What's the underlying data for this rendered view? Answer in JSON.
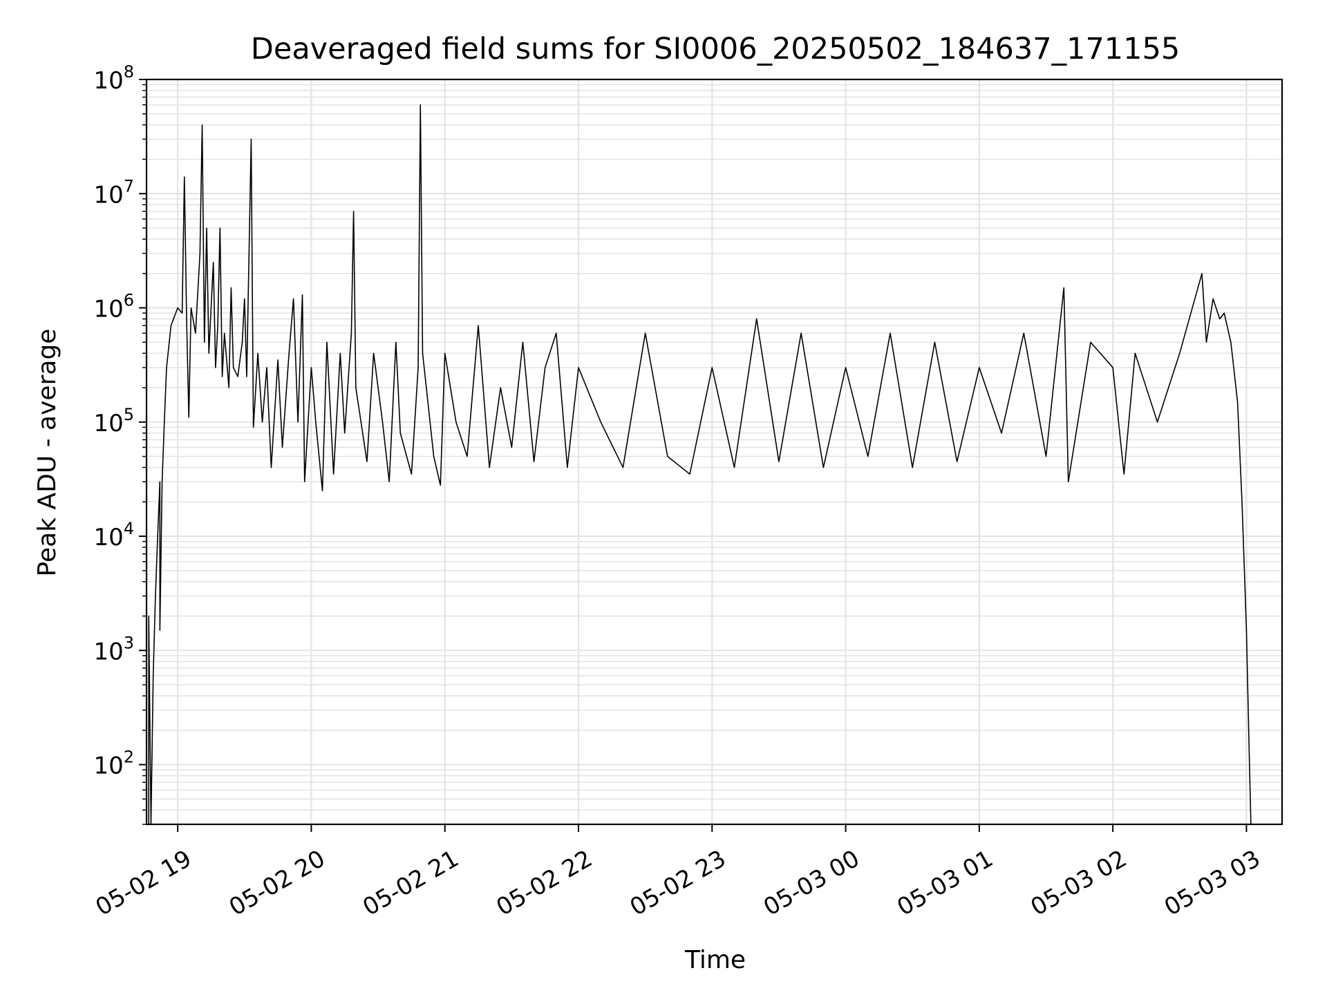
{
  "chart_data": {
    "type": "line",
    "title": "Deaveraged field sums for SI0006_20250502_184637_171155",
    "xlabel": "Time",
    "ylabel": "Peak ADU - average",
    "x_axis_type": "datetime",
    "y_scale": "log",
    "xlim": [
      "2025-05-02 18:46",
      "2025-05-03 03:16"
    ],
    "ylim": [
      30,
      100000000
    ],
    "grid": true,
    "grid_minor": true,
    "line_color": "#000000",
    "x_ticks": [
      {
        "value": "2025-05-02 19:00",
        "label": "05-02 19"
      },
      {
        "value": "2025-05-02 20:00",
        "label": "05-02 20"
      },
      {
        "value": "2025-05-02 21:00",
        "label": "05-02 21"
      },
      {
        "value": "2025-05-02 22:00",
        "label": "05-02 22"
      },
      {
        "value": "2025-05-02 23:00",
        "label": "05-02 23"
      },
      {
        "value": "2025-05-03 00:00",
        "label": "05-03 00"
      },
      {
        "value": "2025-05-03 01:00",
        "label": "05-03 01"
      },
      {
        "value": "2025-05-03 02:00",
        "label": "05-03 02"
      },
      {
        "value": "2025-05-03 03:00",
        "label": "05-03 03"
      }
    ],
    "y_ticks": [
      {
        "value": 100,
        "base": "10",
        "exp": "2"
      },
      {
        "value": 1000,
        "base": "10",
        "exp": "3"
      },
      {
        "value": 10000,
        "base": "10",
        "exp": "4"
      },
      {
        "value": 100000,
        "base": "10",
        "exp": "5"
      },
      {
        "value": 1000000,
        "base": "10",
        "exp": "6"
      },
      {
        "value": 10000000,
        "base": "10",
        "exp": "7"
      },
      {
        "value": 100000000,
        "base": "10",
        "exp": "8"
      }
    ],
    "series": [
      {
        "points": [
          [
            "2025-05-02 18:47",
            30
          ],
          [
            "2025-05-02 18:47",
            2000
          ],
          [
            "2025-05-02 18:48",
            30
          ],
          [
            "2025-05-02 18:49",
            600
          ],
          [
            "2025-05-02 18:50",
            3000
          ],
          [
            "2025-05-02 18:51",
            10000
          ],
          [
            "2025-05-02 18:52",
            30000
          ],
          [
            "2025-05-02 18:52",
            1500
          ],
          [
            "2025-05-02 18:53",
            30000
          ],
          [
            "2025-05-02 18:54",
            100000
          ],
          [
            "2025-05-02 18:55",
            300000
          ],
          [
            "2025-05-02 18:57",
            700000
          ],
          [
            "2025-05-02 19:00",
            1000000
          ],
          [
            "2025-05-02 19:02",
            900000
          ],
          [
            "2025-05-02 19:03",
            14000000
          ],
          [
            "2025-05-02 19:04",
            800000
          ],
          [
            "2025-05-02 19:05",
            110000
          ],
          [
            "2025-05-02 19:06",
            1000000
          ],
          [
            "2025-05-02 19:08",
            600000
          ],
          [
            "2025-05-02 19:10",
            3000000
          ],
          [
            "2025-05-02 19:11",
            40000000
          ],
          [
            "2025-05-02 19:12",
            500000
          ],
          [
            "2025-05-02 19:13",
            5000000
          ],
          [
            "2025-05-02 19:14",
            400000
          ],
          [
            "2025-05-02 19:16",
            2500000
          ],
          [
            "2025-05-02 19:17",
            300000
          ],
          [
            "2025-05-02 19:18",
            700000
          ],
          [
            "2025-05-02 19:19",
            5000000
          ],
          [
            "2025-05-02 19:20",
            250000
          ],
          [
            "2025-05-02 19:21",
            600000
          ],
          [
            "2025-05-02 19:23",
            200000
          ],
          [
            "2025-05-02 19:24",
            1500000
          ],
          [
            "2025-05-02 19:25",
            300000
          ],
          [
            "2025-05-02 19:27",
            250000
          ],
          [
            "2025-05-02 19:29",
            500000
          ],
          [
            "2025-05-02 19:30",
            1200000
          ],
          [
            "2025-05-02 19:31",
            250000
          ],
          [
            "2025-05-02 19:33",
            30000000
          ],
          [
            "2025-05-02 19:34",
            90000
          ],
          [
            "2025-05-02 19:36",
            400000
          ],
          [
            "2025-05-02 19:38",
            100000
          ],
          [
            "2025-05-02 19:40",
            300000
          ],
          [
            "2025-05-02 19:42",
            40000
          ],
          [
            "2025-05-02 19:45",
            350000
          ],
          [
            "2025-05-02 19:47",
            60000
          ],
          [
            "2025-05-02 19:50",
            400000
          ],
          [
            "2025-05-02 19:52",
            1200000
          ],
          [
            "2025-05-02 19:54",
            100000
          ],
          [
            "2025-05-02 19:56",
            1300000
          ],
          [
            "2025-05-02 19:57",
            30000
          ],
          [
            "2025-05-02 20:00",
            300000
          ],
          [
            "2025-05-02 20:02",
            100000
          ],
          [
            "2025-05-02 20:05",
            25000
          ],
          [
            "2025-05-02 20:07",
            500000
          ],
          [
            "2025-05-02 20:10",
            35000
          ],
          [
            "2025-05-02 20:13",
            400000
          ],
          [
            "2025-05-02 20:15",
            80000
          ],
          [
            "2025-05-02 20:18",
            600000
          ],
          [
            "2025-05-02 20:19",
            7000000
          ],
          [
            "2025-05-02 20:20",
            200000
          ],
          [
            "2025-05-02 20:25",
            45000
          ],
          [
            "2025-05-02 20:28",
            400000
          ],
          [
            "2025-05-02 20:32",
            100000
          ],
          [
            "2025-05-02 20:35",
            30000
          ],
          [
            "2025-05-02 20:38",
            500000
          ],
          [
            "2025-05-02 20:40",
            80000
          ],
          [
            "2025-05-02 20:45",
            35000
          ],
          [
            "2025-05-02 20:48",
            300000
          ],
          [
            "2025-05-02 20:49",
            60000000
          ],
          [
            "2025-05-02 20:50",
            400000
          ],
          [
            "2025-05-02 20:55",
            50000
          ],
          [
            "2025-05-02 20:58",
            28000
          ],
          [
            "2025-05-02 21:00",
            400000
          ],
          [
            "2025-05-02 21:05",
            100000
          ],
          [
            "2025-05-02 21:10",
            50000
          ],
          [
            "2025-05-02 21:15",
            700000
          ],
          [
            "2025-05-02 21:20",
            40000
          ],
          [
            "2025-05-02 21:25",
            200000
          ],
          [
            "2025-05-02 21:30",
            60000
          ],
          [
            "2025-05-02 21:35",
            500000
          ],
          [
            "2025-05-02 21:40",
            45000
          ],
          [
            "2025-05-02 21:45",
            300000
          ],
          [
            "2025-05-02 21:50",
            600000
          ],
          [
            "2025-05-02 21:55",
            40000
          ],
          [
            "2025-05-02 22:00",
            300000
          ],
          [
            "2025-05-02 22:10",
            100000
          ],
          [
            "2025-05-02 22:20",
            40000
          ],
          [
            "2025-05-02 22:30",
            600000
          ],
          [
            "2025-05-02 22:40",
            50000
          ],
          [
            "2025-05-02 22:50",
            35000
          ],
          [
            "2025-05-02 23:00",
            300000
          ],
          [
            "2025-05-02 23:10",
            40000
          ],
          [
            "2025-05-02 23:20",
            800000
          ],
          [
            "2025-05-02 23:30",
            45000
          ],
          [
            "2025-05-02 23:40",
            600000
          ],
          [
            "2025-05-02 23:50",
            40000
          ],
          [
            "2025-05-03 00:00",
            300000
          ],
          [
            "2025-05-03 00:10",
            50000
          ],
          [
            "2025-05-03 00:20",
            600000
          ],
          [
            "2025-05-03 00:30",
            40000
          ],
          [
            "2025-05-03 00:40",
            500000
          ],
          [
            "2025-05-03 00:50",
            45000
          ],
          [
            "2025-05-03 01:00",
            300000
          ],
          [
            "2025-05-03 01:10",
            80000
          ],
          [
            "2025-05-03 01:20",
            600000
          ],
          [
            "2025-05-03 01:30",
            50000
          ],
          [
            "2025-05-03 01:38",
            1500000
          ],
          [
            "2025-05-03 01:40",
            30000
          ],
          [
            "2025-05-03 01:50",
            500000
          ],
          [
            "2025-05-03 02:00",
            300000
          ],
          [
            "2025-05-03 02:05",
            35000
          ],
          [
            "2025-05-03 02:10",
            400000
          ],
          [
            "2025-05-03 02:20",
            100000
          ],
          [
            "2025-05-03 02:30",
            400000
          ],
          [
            "2025-05-03 02:40",
            2000000
          ],
          [
            "2025-05-03 02:42",
            500000
          ],
          [
            "2025-05-03 02:45",
            1200000
          ],
          [
            "2025-05-03 02:48",
            800000
          ],
          [
            "2025-05-03 02:50",
            900000
          ],
          [
            "2025-05-03 02:53",
            500000
          ],
          [
            "2025-05-03 02:56",
            150000
          ],
          [
            "2025-05-03 02:58",
            20000
          ],
          [
            "2025-05-03 03:00",
            1500
          ],
          [
            "2025-05-03 03:01",
            200
          ],
          [
            "2025-05-03 03:02",
            30
          ]
        ]
      }
    ]
  }
}
